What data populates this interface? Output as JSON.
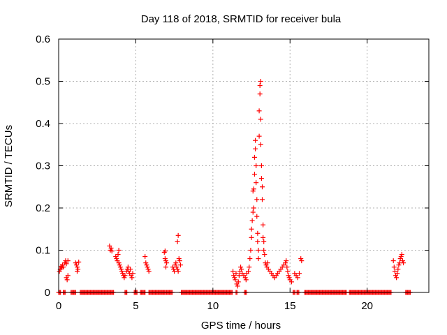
{
  "chart_data": {
    "type": "scatter",
    "title": "Day 118 of 2018, SRMTID for receiver bula",
    "xlabel": "GPS time / hours",
    "ylabel": "SRMTID / TECUs",
    "xlim": [
      0,
      24
    ],
    "ylim": [
      0,
      0.6
    ],
    "xticks": [
      0,
      5,
      10,
      15,
      20
    ],
    "yticks": [
      0,
      0.1,
      0.2,
      0.3,
      0.4,
      0.5,
      0.6
    ],
    "ytick_labels": [
      "0",
      "0.1",
      "0.2",
      "0.3",
      "0.4",
      "0.5",
      "0.6"
    ],
    "grid": true,
    "marker": "+",
    "series_color": "#ff0000",
    "points": [
      [
        0.05,
        0.05
      ],
      [
        0.1,
        0.055
      ],
      [
        0.15,
        0.062
      ],
      [
        0.2,
        0.058
      ],
      [
        0.25,
        0.065
      ],
      [
        0.3,
        0.06
      ],
      [
        0.4,
        0.07
      ],
      [
        0.45,
        0.075
      ],
      [
        0.5,
        0.068
      ],
      [
        0.5,
        0.035
      ],
      [
        0.55,
        0.03
      ],
      [
        0.6,
        0.04
      ],
      [
        0.6,
        0.075
      ],
      [
        1.1,
        0.07
      ],
      [
        1.15,
        0.065
      ],
      [
        1.2,
        0.06
      ],
      [
        1.2,
        0.05
      ],
      [
        1.25,
        0.055
      ],
      [
        1.3,
        0.072
      ],
      [
        3.3,
        0.11
      ],
      [
        3.35,
        0.1
      ],
      [
        3.4,
        0.105
      ],
      [
        3.45,
        0.098
      ],
      [
        3.7,
        0.085
      ],
      [
        3.75,
        0.08
      ],
      [
        3.8,
        0.075
      ],
      [
        3.85,
        0.09
      ],
      [
        3.9,
        0.1
      ],
      [
        3.9,
        0.07
      ],
      [
        3.95,
        0.065
      ],
      [
        4.0,
        0.06
      ],
      [
        4.05,
        0.055
      ],
      [
        4.1,
        0.05
      ],
      [
        4.15,
        0.045
      ],
      [
        4.2,
        0.04
      ],
      [
        4.25,
        0.035
      ],
      [
        4.3,
        0.04
      ],
      [
        4.4,
        0.05
      ],
      [
        4.45,
        0.055
      ],
      [
        4.5,
        0.06
      ],
      [
        4.55,
        0.05
      ],
      [
        4.6,
        0.045
      ],
      [
        4.65,
        0.055
      ],
      [
        4.7,
        0.04
      ],
      [
        4.75,
        0.035
      ],
      [
        4.8,
        0.045
      ],
      [
        5.6,
        0.085
      ],
      [
        5.65,
        0.07
      ],
      [
        5.7,
        0.065
      ],
      [
        5.75,
        0.06
      ],
      [
        5.8,
        0.055
      ],
      [
        5.85,
        0.05
      ],
      [
        6.85,
        0.095
      ],
      [
        6.9,
        0.098
      ],
      [
        6.9,
        0.08
      ],
      [
        6.95,
        0.075
      ],
      [
        7.0,
        0.07
      ],
      [
        6.95,
        0.06
      ],
      [
        7.4,
        0.06
      ],
      [
        7.45,
        0.055
      ],
      [
        7.5,
        0.05
      ],
      [
        7.55,
        0.065
      ],
      [
        7.6,
        0.07
      ],
      [
        7.65,
        0.06
      ],
      [
        7.7,
        0.055
      ],
      [
        7.75,
        0.05
      ],
      [
        7.7,
        0.12
      ],
      [
        7.75,
        0.135
      ],
      [
        7.8,
        0.08
      ],
      [
        7.85,
        0.075
      ],
      [
        7.9,
        0.065
      ],
      [
        11.3,
        0.05
      ],
      [
        11.35,
        0.04
      ],
      [
        11.4,
        0.035
      ],
      [
        11.45,
        0.03
      ],
      [
        11.5,
        0.045
      ],
      [
        11.55,
        0.02
      ],
      [
        11.6,
        0.015
      ],
      [
        11.65,
        0.025
      ],
      [
        11.7,
        0.04
      ],
      [
        11.75,
        0.05
      ],
      [
        11.8,
        0.06
      ],
      [
        11.85,
        0.055
      ],
      [
        11.9,
        0.045
      ],
      [
        12.0,
        0.04
      ],
      [
        12.1,
        0.035
      ],
      [
        12.15,
        0.03
      ],
      [
        12.2,
        0.045
      ],
      [
        12.3,
        0.05
      ],
      [
        12.35,
        0.06
      ],
      [
        12.4,
        0.08
      ],
      [
        12.45,
        0.1
      ],
      [
        12.5,
        0.13
      ],
      [
        12.5,
        0.15
      ],
      [
        12.55,
        0.17
      ],
      [
        12.6,
        0.19
      ],
      [
        12.6,
        0.24
      ],
      [
        12.65,
        0.245
      ],
      [
        12.65,
        0.2
      ],
      [
        12.7,
        0.28
      ],
      [
        12.7,
        0.32
      ],
      [
        12.75,
        0.34
      ],
      [
        12.75,
        0.36
      ],
      [
        12.8,
        0.3
      ],
      [
        12.8,
        0.26
      ],
      [
        12.85,
        0.22
      ],
      [
        12.85,
        0.18
      ],
      [
        12.9,
        0.14
      ],
      [
        12.9,
        0.12
      ],
      [
        12.95,
        0.1
      ],
      [
        12.95,
        0.08
      ],
      [
        13.0,
        0.37
      ],
      [
        13.0,
        0.43
      ],
      [
        13.05,
        0.47
      ],
      [
        13.05,
        0.49
      ],
      [
        13.1,
        0.5
      ],
      [
        13.1,
        0.41
      ],
      [
        13.1,
        0.35
      ],
      [
        13.15,
        0.3
      ],
      [
        13.15,
        0.27
      ],
      [
        13.2,
        0.25
      ],
      [
        13.2,
        0.22
      ],
      [
        13.25,
        0.16
      ],
      [
        13.25,
        0.13
      ],
      [
        13.3,
        0.12
      ],
      [
        13.3,
        0.1
      ],
      [
        13.35,
        0.09
      ],
      [
        13.4,
        0.07
      ],
      [
        13.45,
        0.065
      ],
      [
        13.5,
        0.06
      ],
      [
        13.55,
        0.07
      ],
      [
        13.6,
        0.055
      ],
      [
        13.7,
        0.05
      ],
      [
        13.8,
        0.045
      ],
      [
        13.9,
        0.04
      ],
      [
        14.0,
        0.035
      ],
      [
        14.1,
        0.04
      ],
      [
        14.2,
        0.045
      ],
      [
        14.3,
        0.05
      ],
      [
        14.4,
        0.055
      ],
      [
        14.5,
        0.06
      ],
      [
        14.6,
        0.065
      ],
      [
        14.7,
        0.07
      ],
      [
        14.75,
        0.075
      ],
      [
        14.8,
        0.06
      ],
      [
        14.85,
        0.05
      ],
      [
        14.9,
        0.04
      ],
      [
        14.95,
        0.035
      ],
      [
        15.0,
        0.03
      ],
      [
        15.1,
        0.025
      ],
      [
        15.3,
        0.045
      ],
      [
        15.4,
        0.04
      ],
      [
        15.5,
        0.035
      ],
      [
        15.6,
        0.045
      ],
      [
        15.7,
        0.08
      ],
      [
        15.75,
        0.075
      ],
      [
        21.7,
        0.075
      ],
      [
        21.75,
        0.06
      ],
      [
        21.8,
        0.05
      ],
      [
        21.85,
        0.04
      ],
      [
        21.9,
        0.035
      ],
      [
        21.95,
        0.045
      ],
      [
        22.0,
        0.055
      ],
      [
        22.05,
        0.065
      ],
      [
        22.1,
        0.07
      ],
      [
        22.15,
        0.08
      ],
      [
        22.2,
        0.085
      ],
      [
        22.25,
        0.09
      ],
      [
        22.3,
        0.075
      ],
      [
        22.35,
        0.07
      ]
    ],
    "zero_segments": [
      [
        0.0,
        0.15
      ],
      [
        0.3,
        0.45
      ],
      [
        0.8,
        1.15
      ],
      [
        1.4,
        3.6
      ],
      [
        4.3,
        4.45
      ],
      [
        4.9,
        5.1
      ],
      [
        5.3,
        5.6
      ],
      [
        5.85,
        6.95
      ],
      [
        7.0,
        7.4
      ],
      [
        7.95,
        11.3
      ],
      [
        11.5,
        11.6
      ],
      [
        12.05,
        12.2
      ],
      [
        15.2,
        15.35
      ],
      [
        15.45,
        15.6
      ],
      [
        15.95,
        18.7
      ],
      [
        18.85,
        21.6
      ],
      [
        22.5,
        22.8
      ]
    ]
  }
}
